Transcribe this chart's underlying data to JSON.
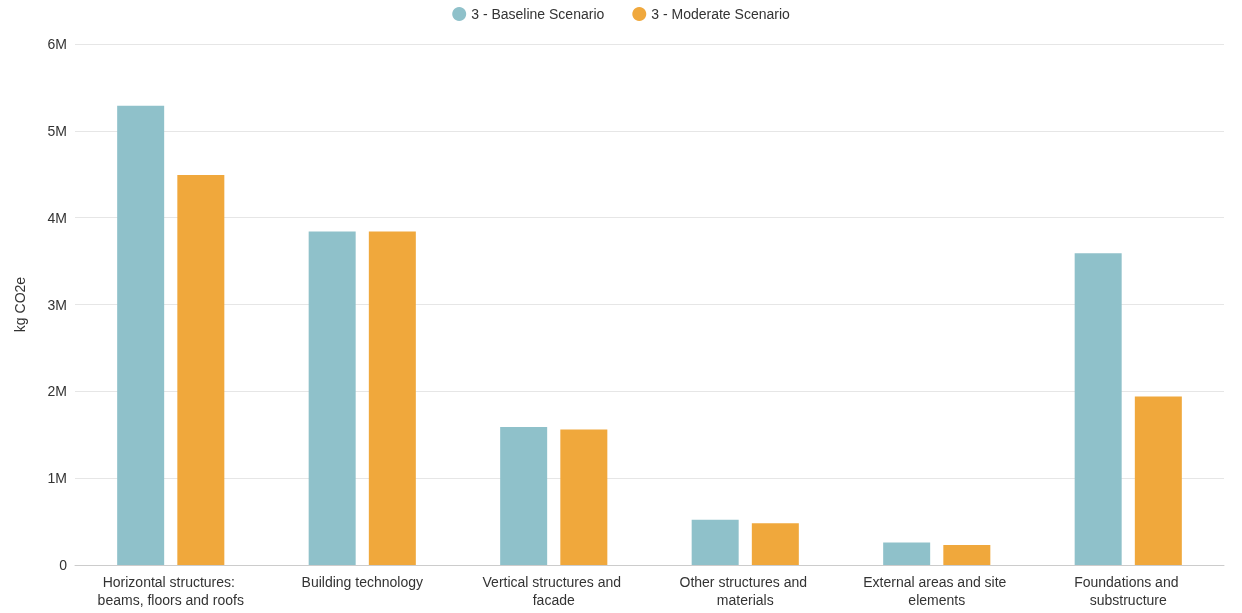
{
  "chart_data": {
    "type": "bar",
    "ylabel": "kg CO2e",
    "categories": [
      "Horizontal structures: beams, floors and roofs",
      "Building technology",
      "Vertical structures and facade",
      "Other structures and materials",
      "External areas and site elements",
      "Foundations and substructure"
    ],
    "series": [
      {
        "name": "3 - Baseline Scenario",
        "color": "#8fc1ca",
        "values": [
          5290000,
          3840000,
          1590000,
          520000,
          260000,
          3590000
        ]
      },
      {
        "name": "3 - Moderate Scenario",
        "color": "#f0a83c",
        "values": [
          4490000,
          3840000,
          1560000,
          480000,
          230000,
          1940000
        ]
      }
    ],
    "ylim": [
      0,
      6000000
    ],
    "yticks": [
      {
        "value": 0,
        "label": "0"
      },
      {
        "value": 1000000,
        "label": "1M"
      },
      {
        "value": 2000000,
        "label": "2M"
      },
      {
        "value": 3000000,
        "label": "3M"
      },
      {
        "value": 4000000,
        "label": "4M"
      },
      {
        "value": 5000000,
        "label": "5M"
      },
      {
        "value": 6000000,
        "label": "6M"
      }
    ],
    "grid": "y",
    "legend": "top"
  }
}
